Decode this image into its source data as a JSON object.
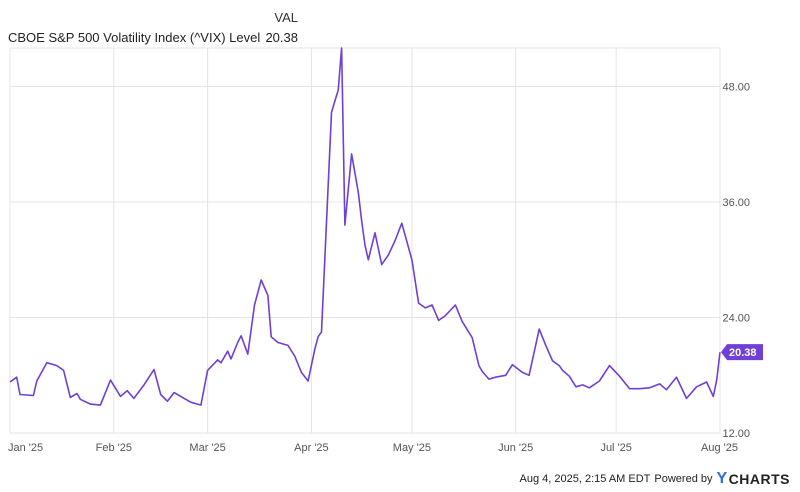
{
  "legend": {
    "column_header": "VAL",
    "series_name": "CBOE S&P 500 Volatility Index (^VIX) Level",
    "series_value": "20.38"
  },
  "footer": {
    "timestamp": "Aug 4, 2025, 2:15 AM EDT",
    "powered_by": "Powered by",
    "brand_mark": "Y",
    "brand_rest": "CHARTS"
  },
  "colors": {
    "line": "#6f3fd6",
    "grid": "#e4e4e4",
    "label_bg": "#6f3fd6"
  },
  "chart_data": {
    "type": "line",
    "ylim": [
      12,
      52
    ],
    "y_ticks": [
      12,
      24,
      36,
      48
    ],
    "y_tick_labels": [
      "12.00",
      "24.00",
      "36.00",
      "48.00"
    ],
    "x_tick_labels": [
      "Jan '25",
      "Feb '25",
      "Mar '25",
      "Apr '25",
      "May '25",
      "Jun '25",
      "Jul '25",
      "Aug '25"
    ],
    "last_value_label": "20.38",
    "series": [
      {
        "name": "CBOE S&P 500 Volatility Index (^VIX) Level",
        "x": [
          "2025-01-01",
          "2025-01-03",
          "2025-01-04",
          "2025-01-08",
          "2025-01-09",
          "2025-01-12",
          "2025-01-15",
          "2025-01-17",
          "2025-01-19",
          "2025-01-21",
          "2025-01-22",
          "2025-01-25",
          "2025-01-28",
          "2025-01-31",
          "2025-02-03",
          "2025-02-05",
          "2025-02-07",
          "2025-02-10",
          "2025-02-13",
          "2025-02-15",
          "2025-02-17",
          "2025-02-19",
          "2025-02-21",
          "2025-02-24",
          "2025-02-27",
          "2025-03-01",
          "2025-03-04",
          "2025-03-05",
          "2025-03-07",
          "2025-03-08",
          "2025-03-10",
          "2025-03-11",
          "2025-03-13",
          "2025-03-15",
          "2025-03-17",
          "2025-03-19",
          "2025-03-20",
          "2025-03-22",
          "2025-03-25",
          "2025-03-27",
          "2025-03-29",
          "2025-03-31",
          "2025-04-02",
          "2025-04-03",
          "2025-04-04",
          "2025-04-07",
          "2025-04-08",
          "2025-04-09",
          "2025-04-10",
          "2025-04-11",
          "2025-04-13",
          "2025-04-15",
          "2025-04-16",
          "2025-04-17",
          "2025-04-18",
          "2025-04-20",
          "2025-04-22",
          "2025-04-24",
          "2025-04-26",
          "2025-04-28",
          "2025-05-01",
          "2025-05-03",
          "2025-05-05",
          "2025-05-07",
          "2025-05-09",
          "2025-05-11",
          "2025-05-14",
          "2025-05-16",
          "2025-05-19",
          "2025-05-21",
          "2025-05-22",
          "2025-05-24",
          "2025-05-26",
          "2025-05-29",
          "2025-05-31",
          "2025-06-03",
          "2025-06-05",
          "2025-06-08",
          "2025-06-10",
          "2025-06-12",
          "2025-06-14",
          "2025-06-15",
          "2025-06-17",
          "2025-06-19",
          "2025-06-21",
          "2025-06-23",
          "2025-06-26",
          "2025-06-29",
          "2025-07-02",
          "2025-07-05",
          "2025-07-08",
          "2025-07-11",
          "2025-07-14",
          "2025-07-16",
          "2025-07-19",
          "2025-07-22",
          "2025-07-25",
          "2025-07-28",
          "2025-07-30",
          "2025-07-31",
          "2025-08-01"
        ],
        "y": [
          17.3,
          17.8,
          16.0,
          15.9,
          17.4,
          19.3,
          19.0,
          18.5,
          15.7,
          16.1,
          15.5,
          15.0,
          14.9,
          17.5,
          15.8,
          16.4,
          15.6,
          17.0,
          18.6,
          16.0,
          15.3,
          16.2,
          15.8,
          15.2,
          14.9,
          18.5,
          19.6,
          19.3,
          20.5,
          19.7,
          21.4,
          22.1,
          20.2,
          25.3,
          27.9,
          26.3,
          22.0,
          21.4,
          21.1,
          20.0,
          18.3,
          17.4,
          20.7,
          22.0,
          22.5,
          45.3,
          46.5,
          47.6,
          52.0,
          33.6,
          41.0,
          37.0,
          34.0,
          31.5,
          30.0,
          32.8,
          29.5,
          30.5,
          32.0,
          33.8,
          30.0,
          25.5,
          25.0,
          25.3,
          23.7,
          24.2,
          25.3,
          23.6,
          21.9,
          19.0,
          18.4,
          17.6,
          17.8,
          18.0,
          19.1,
          18.3,
          18.0,
          22.8,
          21.1,
          19.5,
          19.0,
          18.5,
          17.9,
          16.8,
          17.0,
          16.7,
          17.4,
          19.0,
          17.9,
          16.6,
          16.6,
          16.7,
          17.1,
          16.5,
          17.8,
          15.6,
          16.8,
          17.3,
          15.8,
          17.5,
          20.4
        ]
      }
    ]
  }
}
